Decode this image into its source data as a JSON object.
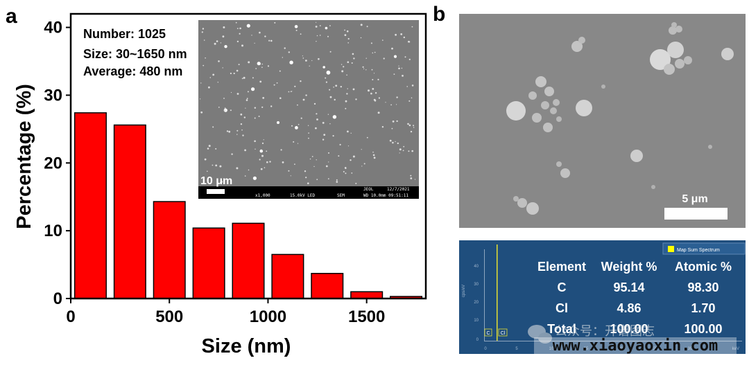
{
  "panel_a": {
    "label": "a",
    "annotation": {
      "number": "Number: 1025",
      "size": "Size: 30~1650 nm",
      "average": "Average: 480 nm"
    },
    "inset": {
      "scale_bar": "10 μm",
      "footer": {
        "vendor": "JEOL",
        "date": "12/7/2021",
        "mag": "x1,000",
        "kv": "15.0kV LED",
        "mode": "SEM",
        "wd": "WD 10.0mm 09:51:11"
      }
    }
  },
  "panel_b": {
    "label": "b",
    "sem_scale_bar": "5 μm",
    "eds": {
      "legend": "Map Sum Spectrum",
      "y_axis_label": "cps/eV",
      "y_ticks": [
        "40",
        "30",
        "20",
        "10",
        "0"
      ],
      "x_ticks": [
        "0",
        "5",
        "10",
        "15",
        "20",
        "25",
        "30"
      ],
      "x_unit": "keV",
      "peak_labels": [
        "C",
        "Cl"
      ],
      "table": {
        "headers": [
          "Element",
          "Weight %",
          "Atomic %"
        ],
        "rows": [
          [
            "C",
            "95.14",
            "98.30"
          ],
          [
            "Cl",
            "4.86",
            "1.70"
          ],
          [
            "Total",
            "100.00",
            "100.00"
          ]
        ]
      }
    }
  },
  "watermark": {
    "wechat_text": "公众号：开谱图志",
    "url": "www.xiaoyaoxin.com"
  },
  "colors": {
    "bar_fill": "#ff0000",
    "bar_stroke": "#000000",
    "eds_bg": "#1f4e7d",
    "sem_bg": "#8a8a8a"
  },
  "chart_data": {
    "type": "bar",
    "xlabel": "Size (nm)",
    "ylabel": "Percentage (%)",
    "xlim": [
      0,
      1800
    ],
    "ylim": [
      0,
      42
    ],
    "x_ticks": [
      0,
      500,
      1000,
      1500
    ],
    "y_ticks": [
      0,
      10,
      20,
      30,
      40
    ],
    "bin_width": 160,
    "x": [
      100,
      300,
      500,
      700,
      900,
      1100,
      1300,
      1500,
      1700
    ],
    "values": [
      27.4,
      25.6,
      14.3,
      10.4,
      11.1,
      6.5,
      3.7,
      1.0,
      0.3
    ]
  }
}
